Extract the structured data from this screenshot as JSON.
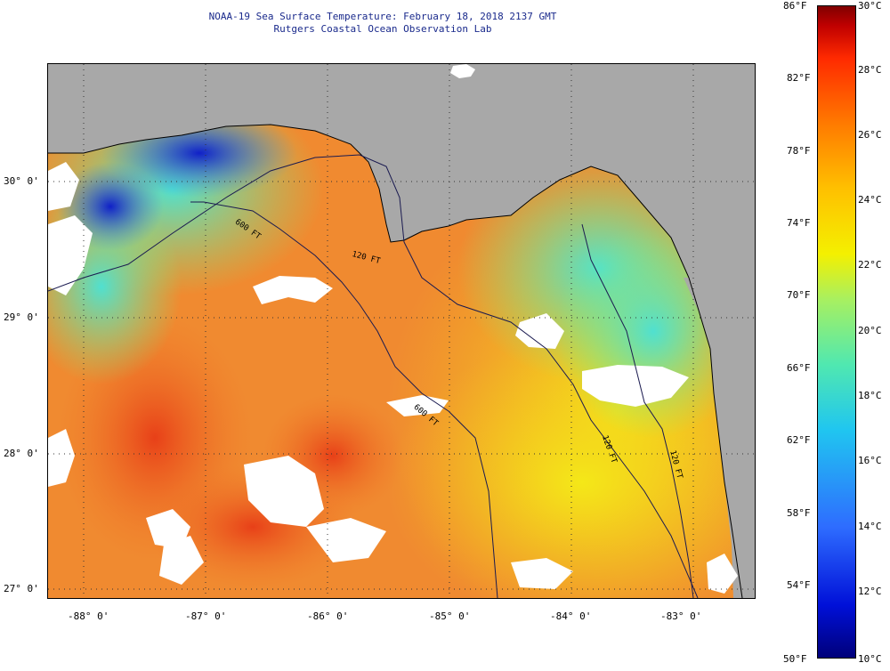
{
  "header": {
    "title_line1": "NOAA-19 Sea Surface Temperature:  February 18, 2018 2137 GMT",
    "title_line2": "Rutgers Coastal Ocean Observation Lab"
  },
  "map": {
    "region": "Northeastern Gulf of Mexico / Florida",
    "lat_labels": [
      "30° 0'",
      "29° 0'",
      "28° 0'",
      "27° 0'"
    ],
    "lon_labels": [
      "-88° 0'",
      "-87° 0'",
      "-86° 0'",
      "-85° 0'",
      "-84° 0'",
      "-83° 0'"
    ],
    "contour_labels": [
      "600 FT",
      "120 FT",
      "600 FT",
      "120 FT",
      "120 FT"
    ],
    "colors": {
      "land": "#a8a8a8",
      "cloud": "#ffffff",
      "warm": "#f07828",
      "cool": "#40d8c8",
      "cold": "#1020c8"
    }
  },
  "colorbar": {
    "fahrenheit_labels": [
      "86°F",
      "82°F",
      "78°F",
      "74°F",
      "70°F",
      "66°F",
      "62°F",
      "58°F",
      "54°F",
      "50°F"
    ],
    "celsius_labels": [
      "30°C",
      "28°C",
      "26°C",
      "24°C",
      "22°C",
      "20°C",
      "18°C",
      "16°C",
      "14°C",
      "12°C",
      "10°C"
    ]
  }
}
